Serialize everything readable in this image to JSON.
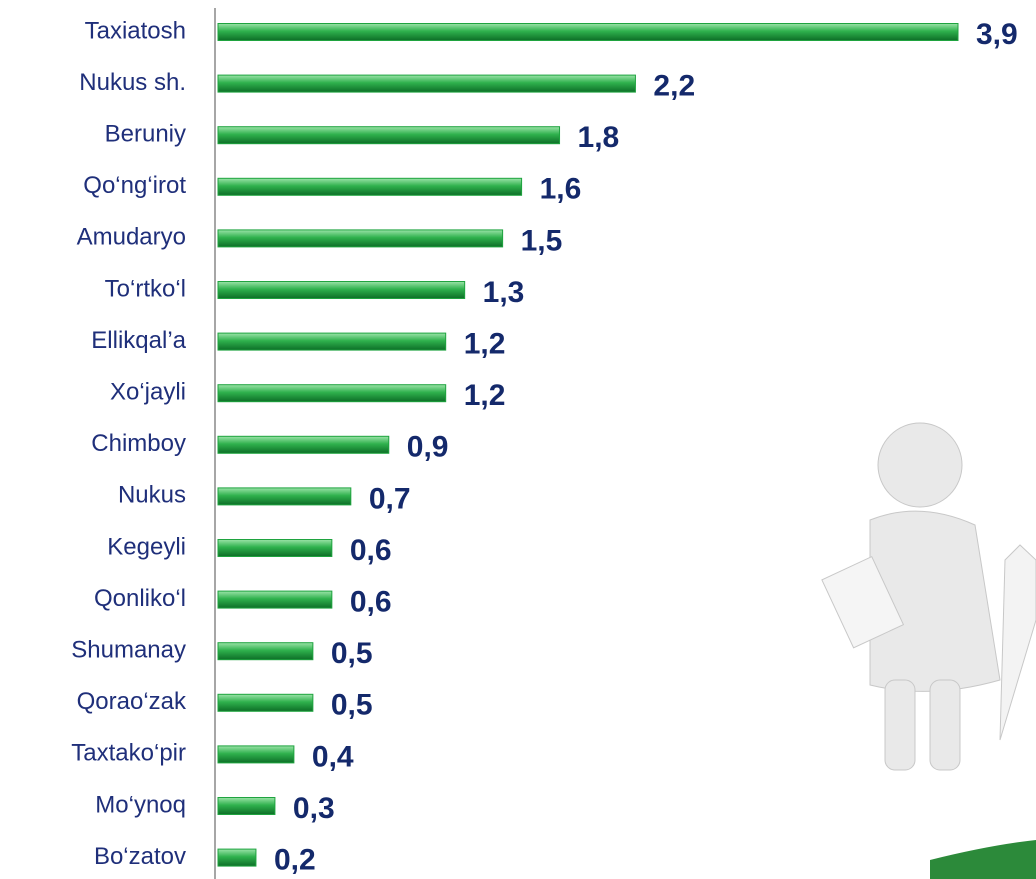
{
  "chart_data": {
    "type": "bar",
    "orientation": "horizontal",
    "categories": [
      "Taxiatosh",
      "Nukus sh.",
      "Beruniy",
      "Qo‘ng‘irot",
      "Amudaryo",
      "To‘rtko‘l",
      "Ellikqal’a",
      "Xo‘jayli",
      "Chimboy",
      "Nukus",
      "Kegeyli",
      "Qonliko‘l",
      "Shumanay",
      "Qorao‘zak",
      "Taxtako‘pir",
      "Mo‘ynoq",
      "Bo‘zatov"
    ],
    "values": [
      3.9,
      2.2,
      1.8,
      1.6,
      1.5,
      1.3,
      1.2,
      1.2,
      0.9,
      0.7,
      0.6,
      0.6,
      0.5,
      0.5,
      0.4,
      0.3,
      0.2
    ],
    "value_labels": [
      "3,9",
      "2,2",
      "1,8",
      "1,6",
      "1,5",
      "1,3",
      "1,2",
      "1,2",
      "0,9",
      "0,7",
      "0,6",
      "0,6",
      "0,5",
      "0,5",
      "0,4",
      "0,3",
      "0,2"
    ],
    "color": "#1fa33f"
  }
}
